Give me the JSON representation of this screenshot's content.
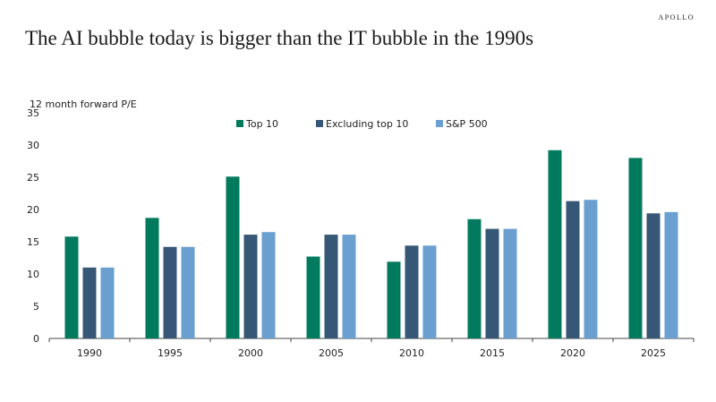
{
  "brand": "APOLLO",
  "title": "The AI bubble today is bigger than the IT bubble in the 1990s",
  "colors": {
    "Top 10": "#027a5e",
    "Excluding top 10": "#365775",
    "S&P 500": "#6a9fd0"
  },
  "chart_data": {
    "type": "bar",
    "title": "The AI bubble today is bigger than the IT bubble in the 1990s",
    "ylabel": "12 month forward P/E",
    "xlabel": "",
    "ylim": [
      0,
      35
    ],
    "yticks": [
      0,
      5,
      10,
      15,
      20,
      25,
      30,
      35
    ],
    "grid": false,
    "legend": "top-center",
    "categories": [
      "1990",
      "1995",
      "2000",
      "2005",
      "2010",
      "2015",
      "2020",
      "2025"
    ],
    "series": [
      {
        "name": "Top 10",
        "values": [
          15.8,
          18.7,
          25.1,
          12.7,
          11.9,
          18.5,
          29.2,
          28.0
        ]
      },
      {
        "name": "Excluding top 10",
        "values": [
          11.0,
          14.2,
          16.1,
          16.1,
          14.4,
          17.0,
          21.3,
          19.4
        ]
      },
      {
        "name": "S&P 500",
        "values": [
          11.0,
          14.2,
          16.5,
          16.1,
          14.4,
          17.0,
          21.5,
          19.6
        ]
      }
    ]
  }
}
